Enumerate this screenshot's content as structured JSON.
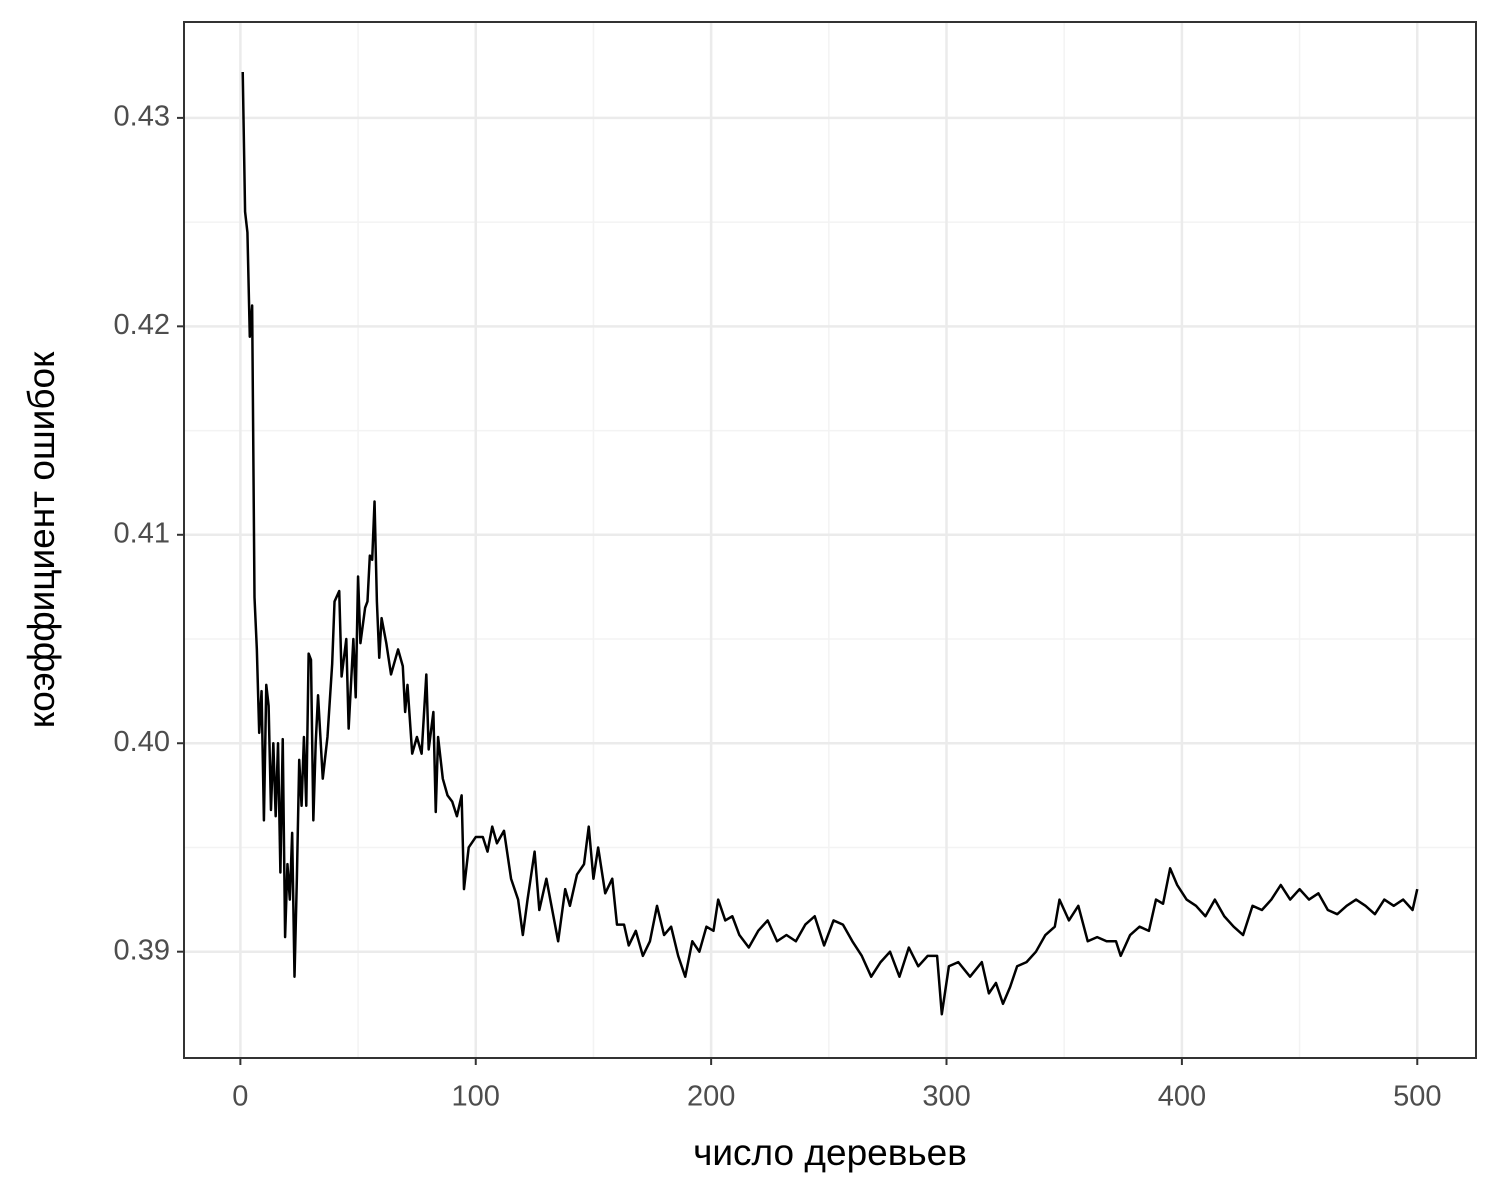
{
  "chart_data": {
    "type": "line",
    "xlabel": "число деревьев",
    "ylabel": "коэффициент ошибок",
    "color": "#000000",
    "grid": true,
    "minor_grid": true,
    "xlim": [
      -23.95,
      524.95
    ],
    "ylim": [
      0.3849,
      0.4346
    ],
    "xticks": [
      0,
      100,
      200,
      300,
      400,
      500
    ],
    "yticks": [
      0.39,
      {
        "value": 0.4,
        "label": "0.40"
      },
      0.41,
      0.42,
      0.43
    ],
    "x": [
      1,
      2,
      3,
      4,
      5,
      6,
      7,
      8,
      9,
      10,
      11,
      12,
      13,
      14,
      15,
      16,
      17,
      18,
      19,
      20,
      21,
      22,
      23,
      24,
      25,
      26,
      27,
      28,
      29,
      30,
      31,
      32,
      33,
      35,
      37,
      39,
      40,
      42,
      43,
      45,
      46,
      48,
      49,
      50,
      51,
      53,
      54,
      55,
      56,
      57,
      58,
      59,
      60,
      62,
      64,
      67,
      69,
      70,
      71,
      73,
      75,
      77,
      79,
      80,
      82,
      83,
      84,
      86,
      88,
      90,
      92,
      94,
      95,
      97,
      100,
      103,
      105,
      107,
      109,
      112,
      115,
      118,
      120,
      122,
      125,
      127,
      130,
      133,
      135,
      138,
      140,
      143,
      146,
      148,
      150,
      152,
      155,
      158,
      160,
      163,
      165,
      168,
      171,
      174,
      177,
      180,
      183,
      186,
      189,
      192,
      195,
      198,
      201,
      203,
      206,
      209,
      212,
      216,
      220,
      224,
      228,
      232,
      236,
      240,
      244,
      248,
      252,
      256,
      260,
      264,
      268,
      272,
      276,
      280,
      284,
      288,
      292,
      296,
      298,
      301,
      305,
      310,
      315,
      318,
      321,
      324,
      327,
      330,
      334,
      338,
      342,
      346,
      348,
      352,
      356,
      360,
      364,
      368,
      372,
      374,
      378,
      382,
      386,
      389,
      392,
      395,
      398,
      402,
      406,
      410,
      414,
      418,
      422,
      426,
      430,
      434,
      438,
      442,
      446,
      450,
      454,
      458,
      462,
      466,
      470,
      474,
      478,
      482,
      486,
      490,
      494,
      498,
      500
    ],
    "values": [
      0.4322,
      0.4255,
      0.4245,
      0.4195,
      0.421,
      0.407,
      0.4045,
      0.4005,
      0.4025,
      0.3963,
      0.4028,
      0.4018,
      0.3968,
      0.4,
      0.3965,
      0.4,
      0.3938,
      0.4002,
      0.3907,
      0.3942,
      0.3925,
      0.3957,
      0.3888,
      0.3935,
      0.3992,
      0.397,
      0.4003,
      0.397,
      0.4043,
      0.404,
      0.3963,
      0.4,
      0.4023,
      0.3983,
      0.4003,
      0.4038,
      0.4068,
      0.4073,
      0.4032,
      0.405,
      0.4007,
      0.405,
      0.4022,
      0.408,
      0.4048,
      0.4065,
      0.4068,
      0.409,
      0.4088,
      0.4116,
      0.4068,
      0.4041,
      0.406,
      0.4048,
      0.4033,
      0.4045,
      0.4037,
      0.4015,
      0.4028,
      0.3995,
      0.4003,
      0.3995,
      0.4033,
      0.3997,
      0.4015,
      0.3967,
      0.4003,
      0.3983,
      0.3975,
      0.3972,
      0.3965,
      0.3975,
      0.393,
      0.395,
      0.3955,
      0.3955,
      0.3948,
      0.396,
      0.3952,
      0.3958,
      0.3935,
      0.3925,
      0.3908,
      0.3925,
      0.3948,
      0.392,
      0.3935,
      0.3917,
      0.3905,
      0.393,
      0.3922,
      0.3937,
      0.3942,
      0.396,
      0.3935,
      0.395,
      0.3928,
      0.3935,
      0.3913,
      0.3913,
      0.3903,
      0.391,
      0.3898,
      0.3905,
      0.3922,
      0.3908,
      0.3912,
      0.3898,
      0.3888,
      0.3905,
      0.39,
      0.3912,
      0.391,
      0.3925,
      0.3915,
      0.3917,
      0.3908,
      0.3902,
      0.391,
      0.3915,
      0.3905,
      0.3908,
      0.3905,
      0.3913,
      0.3917,
      0.3903,
      0.3915,
      0.3913,
      0.3905,
      0.3898,
      0.3888,
      0.3895,
      0.39,
      0.3888,
      0.3902,
      0.3893,
      0.3898,
      0.3898,
      0.387,
      0.3893,
      0.3895,
      0.3888,
      0.3895,
      0.388,
      0.3885,
      0.3875,
      0.3883,
      0.3893,
      0.3895,
      0.39,
      0.3908,
      0.3912,
      0.3925,
      0.3915,
      0.3922,
      0.3905,
      0.3907,
      0.3905,
      0.3905,
      0.3898,
      0.3908,
      0.3912,
      0.391,
      0.3925,
      0.3923,
      0.394,
      0.3932,
      0.3925,
      0.3922,
      0.3917,
      0.3925,
      0.3917,
      0.3912,
      0.3908,
      0.3922,
      0.392,
      0.3925,
      0.3932,
      0.3925,
      0.393,
      0.3925,
      0.3928,
      0.392,
      0.3918,
      0.3922,
      0.3925,
      0.3922,
      0.3918,
      0.3925,
      0.3922,
      0.3925,
      0.392,
      0.393
    ]
  }
}
